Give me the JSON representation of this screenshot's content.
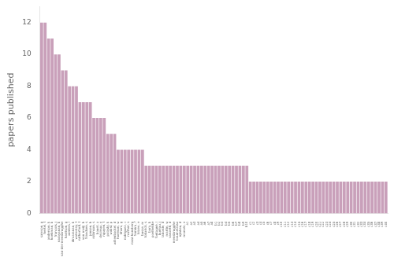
{
  "chart_data": {
    "type": "bar",
    "categories": [
      "samson, g",
      "hertel, t",
      "anderson, k",
      "hoekman, b",
      "francois, j",
      "narayanan, b",
      "van-der-mensbrugghe",
      "harrison, g",
      "winters, l",
      "dimaranan, b",
      "walmsley, t",
      "rutherford, t",
      "van meijl, h",
      "frandsen, s",
      "jensen, h",
      "robinson, s",
      "bouet, a",
      "decreux, y",
      "nguyen, t",
      "polaski, k",
      "wobst, p",
      "willenbockel, d",
      "harrison, w",
      "khara, g",
      "rodriguez, c",
      "mather, s",
      "rossi-hansberg",
      "ferreira, f",
      "kraev, e",
      "busse, m",
      "tokarick, s",
      "bora, b",
      "poelhekke",
      "fontagné, l",
      "bureau, j",
      "laborde, d",
      "martin, w",
      "vanzetti, d",
      "mensbrugghe",
      "boumelassa",
      "njinkeu, d",
      "manole, v",
      "a1",
      "a2",
      "a3",
      "a4",
      "a5",
      "a6",
      "a7",
      "a8",
      "b1",
      "b2",
      "b3",
      "b4",
      "b5",
      "b6",
      "b7",
      "b8",
      "b9",
      "b10",
      "c1",
      "c2",
      "c3",
      "c4",
      "c5",
      "c6",
      "c7",
      "c8",
      "c9",
      "c10",
      "c11",
      "c12",
      "c13",
      "c14",
      "c15",
      "c16",
      "c17",
      "c18",
      "c19",
      "c20",
      "c21",
      "c22",
      "c23",
      "c24",
      "c25",
      "c26",
      "c27",
      "c28",
      "c29",
      "c30",
      "c31",
      "c32",
      "c33",
      "c34",
      "c35",
      "c36",
      "c37",
      "c38",
      "c39",
      "c40"
    ],
    "values": [
      12,
      12,
      11,
      11,
      10,
      10,
      9,
      9,
      8,
      8,
      8,
      7,
      7,
      7,
      7,
      6,
      6,
      6,
      6,
      5,
      5,
      5,
      4,
      4,
      4,
      4,
      4,
      4,
      4,
      4,
      3,
      3,
      3,
      3,
      3,
      3,
      3,
      3,
      3,
      3,
      3,
      3,
      3,
      3,
      3,
      3,
      3,
      3,
      3,
      3,
      3,
      3,
      3,
      3,
      3,
      3,
      3,
      3,
      3,
      3,
      2,
      2,
      2,
      2,
      2,
      2,
      2,
      2,
      2,
      2,
      2,
      2,
      2,
      2,
      2,
      2,
      2,
      2,
      2,
      2,
      2,
      2,
      2,
      2,
      2,
      2,
      2,
      2,
      2,
      2,
      2,
      2,
      2,
      2,
      2,
      2,
      2,
      2,
      2,
      2
    ],
    "color": "#c9a0ba",
    "ylabel": "papers published",
    "ylim": [
      0,
      13
    ],
    "yticks": [
      0,
      2,
      4,
      6,
      8,
      10,
      12
    ],
    "grid": false
  }
}
